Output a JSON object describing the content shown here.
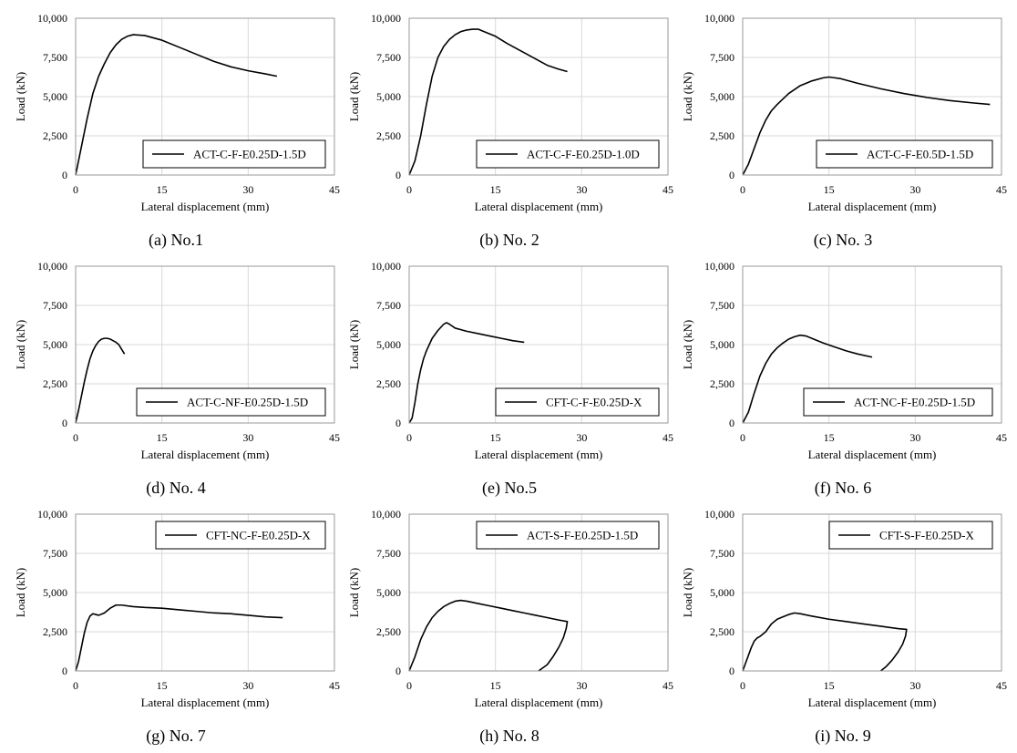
{
  "chart_data": [
    {
      "type": "line",
      "caption": "(a) No.1",
      "legend": "ACT-C-F-E0.25D-1.5D",
      "xlabel": "Lateral displacement (mm)",
      "ylabel": "Load (kN)",
      "xlim": [
        0,
        45
      ],
      "ylim": [
        0,
        10000
      ],
      "xticks": [
        "0",
        "15",
        "30",
        "45"
      ],
      "yticks": [
        "0",
        "2,500",
        "5,000",
        "7,500",
        "10,000"
      ],
      "grid": true,
      "legend_position": "bottom-right",
      "series": [
        {
          "x": [
            0,
            1,
            2,
            3,
            4,
            5,
            6,
            7,
            8,
            9,
            10,
            12,
            15,
            18,
            21,
            24,
            27,
            30,
            33,
            35
          ],
          "y": [
            0,
            1800,
            3600,
            5200,
            6300,
            7100,
            7800,
            8300,
            8650,
            8850,
            8950,
            8900,
            8600,
            8150,
            7700,
            7250,
            6900,
            6650,
            6450,
            6300
          ]
        }
      ]
    },
    {
      "type": "line",
      "caption": "(b) No. 2",
      "legend": "ACT-C-F-E0.25D-1.0D",
      "xlabel": "Lateral displacement (mm)",
      "ylabel": "Load (kN)",
      "xlim": [
        0,
        45
      ],
      "ylim": [
        0,
        10000
      ],
      "xticks": [
        "0",
        "15",
        "30",
        "45"
      ],
      "yticks": [
        "0",
        "2,500",
        "5,000",
        "7,500",
        "10,000"
      ],
      "grid": true,
      "legend_position": "bottom-right",
      "series": [
        {
          "x": [
            0,
            1,
            2,
            3,
            4,
            5,
            6,
            7,
            8,
            9,
            10,
            11,
            12,
            13,
            15,
            17,
            19,
            20,
            22,
            24,
            26,
            27.5
          ],
          "y": [
            0,
            900,
            2500,
            4500,
            6300,
            7500,
            8200,
            8650,
            8950,
            9150,
            9250,
            9300,
            9300,
            9150,
            8850,
            8400,
            8000,
            7800,
            7400,
            7000,
            6750,
            6600
          ]
        }
      ]
    },
    {
      "type": "line",
      "caption": "(c) No. 3",
      "legend": "ACT-C-F-E0.5D-1.5D",
      "xlabel": "Lateral displacement (mm)",
      "ylabel": "Load (kN)",
      "xlim": [
        0,
        45
      ],
      "ylim": [
        0,
        10000
      ],
      "xticks": [
        "0",
        "15",
        "30",
        "45"
      ],
      "yticks": [
        "0",
        "2,500",
        "5,000",
        "7,500",
        "10,000"
      ],
      "grid": true,
      "legend_position": "bottom-right",
      "series": [
        {
          "x": [
            0,
            1,
            2,
            3,
            4,
            5,
            6,
            8,
            10,
            12,
            14,
            15,
            16,
            17,
            20,
            24,
            28,
            32,
            36,
            40,
            43
          ],
          "y": [
            0,
            700,
            1700,
            2700,
            3500,
            4100,
            4500,
            5200,
            5700,
            6000,
            6200,
            6250,
            6200,
            6150,
            5850,
            5500,
            5200,
            4950,
            4750,
            4600,
            4500
          ]
        }
      ]
    },
    {
      "type": "line",
      "caption": "(d) No. 4",
      "legend": "ACT-C-NF-E0.25D-1.5D",
      "xlabel": "Lateral displacement (mm)",
      "ylabel": "Load (kN)",
      "xlim": [
        0,
        45
      ],
      "ylim": [
        0,
        10000
      ],
      "xticks": [
        "0",
        "15",
        "30",
        "45"
      ],
      "yticks": [
        "0",
        "2,500",
        "5,000",
        "7,500",
        "10,000"
      ],
      "grid": true,
      "legend_position": "bottom-right",
      "series": [
        {
          "x": [
            0,
            0.5,
            1,
            1.5,
            2,
            2.5,
            3,
            3.5,
            4,
            4.5,
            5,
            5.5,
            6,
            6.5,
            7,
            7.5,
            8,
            8.5
          ],
          "y": [
            0,
            800,
            1700,
            2600,
            3400,
            4100,
            4600,
            4950,
            5200,
            5350,
            5400,
            5400,
            5350,
            5250,
            5150,
            5000,
            4700,
            4400
          ]
        }
      ]
    },
    {
      "type": "line",
      "caption": "(e) No.5",
      "legend": "CFT-C-F-E0.25D-X",
      "xlabel": "Lateral displacement (mm)",
      "ylabel": "Load (kN)",
      "xlim": [
        0,
        45
      ],
      "ylim": [
        0,
        10000
      ],
      "xticks": [
        "0",
        "15",
        "30",
        "45"
      ],
      "yticks": [
        "0",
        "2,500",
        "5,000",
        "7,500",
        "10,000"
      ],
      "grid": true,
      "legend_position": "bottom-right",
      "series": [
        {
          "x": [
            0,
            0.5,
            1,
            1.5,
            2,
            2.5,
            3,
            3.5,
            4,
            5,
            6,
            6.5,
            7,
            8,
            9,
            10,
            12,
            14,
            16,
            18,
            20
          ],
          "y": [
            0,
            300,
            1300,
            2500,
            3400,
            4100,
            4600,
            5000,
            5400,
            5900,
            6300,
            6400,
            6300,
            6050,
            5950,
            5850,
            5700,
            5550,
            5400,
            5250,
            5150
          ]
        }
      ]
    },
    {
      "type": "line",
      "caption": "(f) No. 6",
      "legend": "ACT-NC-F-E0.25D-1.5D",
      "xlabel": "Lateral displacement (mm)",
      "ylabel": "Load (kN)",
      "xlim": [
        0,
        45
      ],
      "ylim": [
        0,
        10000
      ],
      "xticks": [
        "0",
        "15",
        "30",
        "45"
      ],
      "yticks": [
        "0",
        "2,500",
        "5,000",
        "7,500",
        "10,000"
      ],
      "grid": true,
      "legend_position": "bottom-right",
      "series": [
        {
          "x": [
            0,
            1,
            2,
            3,
            4,
            5,
            6,
            7,
            8,
            9,
            10,
            11,
            12,
            14,
            16,
            18,
            20,
            22.5
          ],
          "y": [
            0,
            700,
            1900,
            3000,
            3800,
            4400,
            4800,
            5100,
            5350,
            5500,
            5600,
            5550,
            5400,
            5100,
            4850,
            4600,
            4400,
            4200
          ]
        }
      ]
    },
    {
      "type": "line",
      "caption": "(g) No. 7",
      "legend": "CFT-NC-F-E0.25D-X",
      "xlabel": "Lateral displacement (mm)",
      "ylabel": "Load (kN)",
      "xlim": [
        0,
        45
      ],
      "ylim": [
        0,
        10000
      ],
      "xticks": [
        "0",
        "15",
        "30",
        "45"
      ],
      "yticks": [
        "0",
        "2,500",
        "5,000",
        "7,500",
        "10,000"
      ],
      "grid": true,
      "legend_position": "top-right",
      "series": [
        {
          "x": [
            0,
            0.5,
            1,
            1.5,
            2,
            2.5,
            3,
            3.5,
            4,
            5,
            6,
            7,
            8,
            10,
            12,
            15,
            18,
            21,
            24,
            27,
            30,
            33,
            36
          ],
          "y": [
            0,
            600,
            1500,
            2400,
            3100,
            3500,
            3650,
            3600,
            3550,
            3700,
            4000,
            4200,
            4200,
            4100,
            4050,
            4000,
            3900,
            3800,
            3700,
            3650,
            3550,
            3450,
            3400
          ]
        }
      ]
    },
    {
      "type": "line",
      "caption": "(h) No. 8",
      "legend": "ACT-S-F-E0.25D-1.5D",
      "xlabel": "Lateral displacement (mm)",
      "ylabel": "Load (kN)",
      "xlim": [
        0,
        45
      ],
      "ylim": [
        0,
        10000
      ],
      "xticks": [
        "0",
        "15",
        "30",
        "45"
      ],
      "yticks": [
        "0",
        "2,500",
        "5,000",
        "7,500",
        "10,000"
      ],
      "grid": true,
      "legend_position": "top-right",
      "series": [
        {
          "x": [
            0,
            1,
            2,
            3,
            4,
            5,
            6,
            7,
            8,
            9,
            10,
            12,
            14,
            16,
            18,
            20,
            22,
            24,
            26,
            27.5,
            27.3,
            26.8,
            26,
            25,
            24,
            22.5
          ],
          "y": [
            0,
            900,
            2000,
            2800,
            3400,
            3800,
            4100,
            4300,
            4450,
            4500,
            4450,
            4300,
            4150,
            4000,
            3850,
            3700,
            3550,
            3400,
            3250,
            3150,
            2700,
            2100,
            1500,
            900,
            400,
            0
          ]
        }
      ]
    },
    {
      "type": "line",
      "caption": "(i) No. 9",
      "legend": "CFT-S-F-E0.25D-X",
      "xlabel": "Lateral displacement (mm)",
      "ylabel": "Load (kN)",
      "xlim": [
        0,
        45
      ],
      "ylim": [
        0,
        10000
      ],
      "xticks": [
        "0",
        "15",
        "30",
        "45"
      ],
      "yticks": [
        "0",
        "2,500",
        "5,000",
        "7,500",
        "10,000"
      ],
      "grid": true,
      "legend_position": "top-right",
      "series": [
        {
          "x": [
            0,
            0.5,
            1,
            1.5,
            2,
            2.5,
            3,
            4,
            5,
            6,
            7,
            8,
            9,
            10,
            12,
            15,
            18,
            21,
            24,
            27,
            28.5,
            28.3,
            27.8,
            27,
            26,
            25,
            24
          ],
          "y": [
            0,
            500,
            1000,
            1500,
            1900,
            2100,
            2200,
            2500,
            3000,
            3300,
            3450,
            3600,
            3700,
            3650,
            3500,
            3300,
            3150,
            3000,
            2850,
            2700,
            2650,
            2200,
            1700,
            1200,
            700,
            300,
            0
          ]
        }
      ]
    }
  ]
}
